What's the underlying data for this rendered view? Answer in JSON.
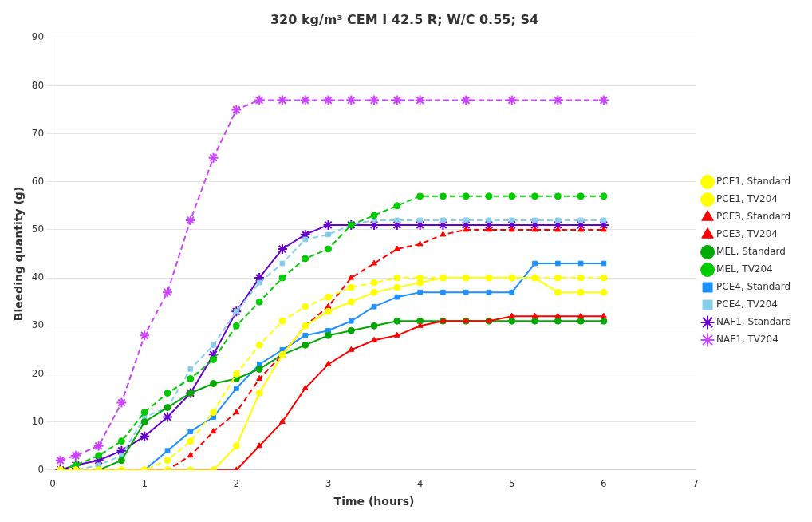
{
  "chart_data": {
    "type": "line",
    "title": "320 kg/m³ CEM I 42.5 R; W/C 0.55; S4",
    "xlabel": "Time (hours)",
    "ylabel": "Bleeding quantity (g)",
    "xlim": [
      0,
      7
    ],
    "ylim": [
      0,
      90
    ],
    "xticks": [
      0,
      1,
      2,
      3,
      4,
      5,
      6,
      7
    ],
    "yticks": [
      0,
      10,
      20,
      30,
      40,
      50,
      60,
      70,
      80,
      90
    ],
    "grid": "y",
    "legend": "right",
    "series": [
      {
        "name": "PCE1, Standard",
        "color": "#ffff00",
        "line_style": "solid",
        "marker": "circle",
        "x": [
          0.083,
          0.25,
          0.5,
          0.75,
          1.0,
          1.25,
          1.5,
          1.75,
          2.0,
          2.25,
          2.5,
          2.75,
          3.0,
          3.25,
          3.5,
          3.75,
          4.0,
          4.25,
          4.5,
          4.75,
          5.0,
          5.25,
          5.5,
          5.75,
          6.0
        ],
        "values": [
          0,
          0,
          0,
          0,
          0,
          0,
          0,
          0,
          5,
          16,
          24,
          30,
          33,
          35,
          37,
          38,
          39,
          40,
          40,
          40,
          40,
          40,
          37,
          37,
          37
        ]
      },
      {
        "name": "PCE1, TV204",
        "color": "#ffff00",
        "line_style": "dashed",
        "marker": "circle",
        "x": [
          0.083,
          0.25,
          0.5,
          0.75,
          1.0,
          1.25,
          1.5,
          1.75,
          2.0,
          2.25,
          2.5,
          2.75,
          3.0,
          3.25,
          3.5,
          3.75,
          4.0,
          4.25,
          4.5,
          4.75,
          5.0,
          5.25,
          5.5,
          5.75,
          6.0
        ],
        "values": [
          0,
          0,
          0,
          0,
          0,
          2,
          6,
          12,
          20,
          26,
          31,
          34,
          36,
          38,
          39,
          40,
          40,
          40,
          40,
          40,
          40,
          40,
          40,
          40,
          40
        ]
      },
      {
        "name": "PCE3, Standard",
        "color": "#ff0000",
        "line_style": "solid",
        "marker": "triangle",
        "x": [
          0.083,
          0.25,
          0.5,
          0.75,
          1.0,
          1.25,
          1.5,
          1.75,
          2.0,
          2.25,
          2.5,
          2.75,
          3.0,
          3.25,
          3.5,
          3.75,
          4.0,
          4.25,
          4.5,
          4.75,
          5.0,
          5.25,
          5.5,
          5.75,
          6.0
        ],
        "values": [
          0,
          0,
          0,
          0,
          0,
          0,
          0,
          0,
          0,
          5,
          10,
          17,
          22,
          25,
          27,
          28,
          30,
          31,
          31,
          31,
          32,
          32,
          32,
          32,
          32
        ]
      },
      {
        "name": "PCE3, TV204",
        "color": "#ff0000",
        "line_style": "dashed",
        "marker": "triangle",
        "x": [
          0.083,
          0.25,
          0.5,
          0.75,
          1.0,
          1.25,
          1.5,
          1.75,
          2.0,
          2.25,
          2.5,
          2.75,
          3.0,
          3.25,
          3.5,
          3.75,
          4.0,
          4.25,
          4.5,
          4.75,
          5.0,
          5.25,
          5.5,
          5.75,
          6.0
        ],
        "values": [
          0,
          0,
          0,
          0,
          0,
          0,
          3,
          8,
          12,
          19,
          24,
          30,
          34,
          40,
          43,
          46,
          47,
          49,
          50,
          50,
          50,
          50,
          50,
          50,
          50
        ]
      },
      {
        "name": "MEL, Standard",
        "color": "#00aa00",
        "line_style": "solid",
        "marker": "circle",
        "x": [
          0.083,
          0.25,
          0.5,
          0.75,
          1.0,
          1.25,
          1.5,
          1.75,
          2.0,
          2.25,
          2.5,
          2.75,
          3.0,
          3.25,
          3.5,
          3.75,
          4.0,
          4.25,
          4.5,
          4.75,
          5.0,
          5.25,
          5.5,
          5.75,
          6.0
        ],
        "values": [
          0,
          0,
          0,
          2,
          10,
          13,
          16,
          18,
          19,
          21,
          24,
          26,
          28,
          29,
          30,
          31,
          31,
          31,
          31,
          31,
          31,
          31,
          31,
          31,
          31
        ]
      },
      {
        "name": "MEL, TV204",
        "color": "#00cc00",
        "line_style": "dashed",
        "marker": "circle",
        "x": [
          0.083,
          0.25,
          0.5,
          0.75,
          1.0,
          1.25,
          1.5,
          1.75,
          2.0,
          2.25,
          2.5,
          2.75,
          3.0,
          3.25,
          3.5,
          3.75,
          4.0,
          4.25,
          4.5,
          4.75,
          5.0,
          5.25,
          5.5,
          5.75,
          6.0
        ],
        "values": [
          0,
          1,
          3,
          6,
          12,
          16,
          19,
          23,
          30,
          35,
          40,
          44,
          46,
          51,
          53,
          55,
          57,
          57,
          57,
          57,
          57,
          57,
          57,
          57,
          57
        ]
      },
      {
        "name": "PCE4, Standard",
        "color": "#1e90ff",
        "line_style": "solid",
        "marker": "square",
        "x": [
          0.083,
          0.25,
          0.5,
          0.75,
          1.0,
          1.25,
          1.5,
          1.75,
          2.0,
          2.25,
          2.5,
          2.75,
          3.0,
          3.25,
          3.5,
          3.75,
          4.0,
          4.25,
          4.5,
          4.75,
          5.0,
          5.25,
          5.5,
          5.75,
          6.0
        ],
        "values": [
          0,
          0,
          0,
          0,
          0,
          4,
          8,
          11,
          17,
          22,
          25,
          28,
          29,
          31,
          34,
          36,
          37,
          37,
          37,
          37,
          37,
          43,
          43,
          43,
          43
        ]
      },
      {
        "name": "PCE4, TV204",
        "color": "#87ceeb",
        "line_style": "dashed",
        "marker": "square",
        "x": [
          0.083,
          0.25,
          0.5,
          0.75,
          1.0,
          1.25,
          1.5,
          1.75,
          2.0,
          2.25,
          2.5,
          2.75,
          3.0,
          3.25,
          3.5,
          3.75,
          4.0,
          4.25,
          4.5,
          4.75,
          5.0,
          5.25,
          5.5,
          5.75,
          6.0
        ],
        "values": [
          0,
          0,
          1,
          3,
          11,
          13,
          21,
          26,
          33,
          39,
          43,
          48,
          49,
          51,
          52,
          52,
          52,
          52,
          52,
          52,
          52,
          52,
          52,
          52,
          52
        ]
      },
      {
        "name": "NAF1, Standard",
        "color": "#6600cc",
        "line_style": "solid",
        "marker": "star",
        "x": [
          0.083,
          0.25,
          0.5,
          0.75,
          1.0,
          1.25,
          1.5,
          1.75,
          2.0,
          2.25,
          2.5,
          2.75,
          3.0,
          3.25,
          3.5,
          3.75,
          4.0,
          4.25,
          4.5,
          4.75,
          5.0,
          5.25,
          5.5,
          5.75,
          6.0
        ],
        "values": [
          0,
          1,
          2,
          4,
          7,
          11,
          16,
          24,
          33,
          40,
          46,
          49,
          51,
          51,
          51,
          51,
          51,
          51,
          51,
          51,
          51,
          51,
          51,
          51,
          51
        ]
      },
      {
        "name": "NAF1, TV204",
        "color": "#cc44ff",
        "line_style": "dashed",
        "marker": "star",
        "x": [
          0.083,
          0.25,
          0.5,
          0.75,
          1.0,
          1.25,
          1.5,
          1.75,
          2.0,
          2.25,
          2.5,
          2.75,
          3.0,
          3.25,
          3.5,
          3.75,
          4.0,
          4.5,
          5.0,
          5.5,
          6.0
        ],
        "values": [
          2,
          3,
          5,
          14,
          28,
          37,
          52,
          65,
          75,
          77,
          77,
          77,
          77,
          77,
          77,
          77,
          77,
          77,
          77,
          77,
          77
        ]
      }
    ]
  }
}
